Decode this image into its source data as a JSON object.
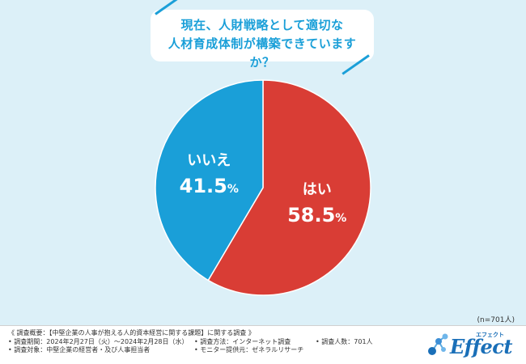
{
  "question": {
    "line1": "現在、人財戦略として適切な",
    "line2": "人材育成体制が構築できていますか？"
  },
  "chart_data": {
    "type": "pie",
    "title": "現在、人財戦略として適切な人材育成体制が構築できていますか？",
    "slices": [
      {
        "label": "はい",
        "value": 58.5,
        "display": "58.5",
        "unit": "%",
        "color": "#d93d35"
      },
      {
        "label": "いいえ",
        "value": 41.5,
        "display": "41.5",
        "unit": "%",
        "color": "#1a9fd8"
      }
    ],
    "start": "12 o'clock",
    "direction": "clockwise",
    "legend": "none",
    "sample_size": "(n=701人)"
  },
  "footer": {
    "overview": "《 調査概要：【中堅企業の人事が抱える人的資本経営に関する課題】に関する調査 》",
    "period": "• 調査期間：2024年2月27日（火）～2024年2月28日（水）",
    "method": "• 調査方法：インターネット調査",
    "count": "• 調査人数：701人",
    "target": "• 調査対象：中堅企業の経営者・及び人事担当者",
    "provider": "• モニター提供元：ゼネラルリサーチ"
  },
  "logo": {
    "text": "Effect",
    "kana": "エフェクト",
    "color": "#1a6fb8"
  }
}
